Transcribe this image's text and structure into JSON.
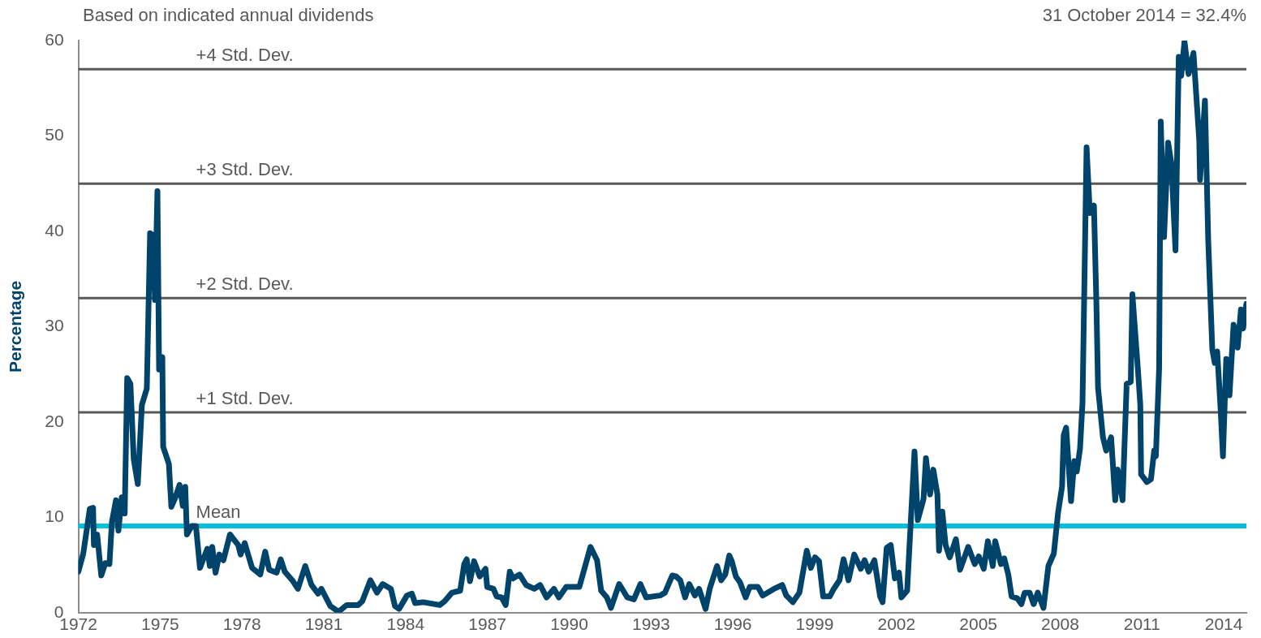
{
  "chart_data": {
    "type": "line",
    "subtitle": "Based on indicated annual dividends",
    "ylabel": "Percentage",
    "annotations": [
      "31 October 2014 = 32.4%"
    ],
    "xlim": [
      1972,
      2014.83
    ],
    "xticks": [
      1972,
      1975,
      1978,
      1981,
      1984,
      1987,
      1990,
      1993,
      1996,
      1999,
      2002,
      2005,
      2008,
      2011,
      2014
    ],
    "ylim": [
      0,
      60
    ],
    "yticks": [
      0,
      10,
      20,
      30,
      40,
      50,
      60
    ],
    "grid": false,
    "legend": false,
    "marker": "none",
    "ref_lines": [
      {
        "axis": "y",
        "value": 9.1,
        "label": "Mean",
        "color": "#00c0dc"
      },
      {
        "axis": "y",
        "value": 21,
        "label": "+1 Std. Dev.",
        "color": "#595959"
      },
      {
        "axis": "y",
        "value": 33,
        "label": "+2 Std. Dev.",
        "color": "#595959"
      },
      {
        "axis": "y",
        "value": 45,
        "label": "+3 Std. Dev.",
        "color": "#595959"
      },
      {
        "axis": "y",
        "value": 57,
        "label": "+4 Std. Dev.",
        "color": "#595959"
      }
    ],
    "series": [
      {
        "color": "#00436b",
        "x": [
          1972,
          1972.18,
          1972.42,
          1972.54,
          1972.57,
          1972.69,
          1972.84,
          1972.99,
          1973.14,
          1973.23,
          1973.38,
          1973.47,
          1973.59,
          1973.7,
          1973.79,
          1973.91,
          1974.03,
          1974.18,
          1974.33,
          1974.51,
          1974.63,
          1974.72,
          1974.81,
          1974.9,
          1974.96,
          1975.08,
          1975.11,
          1975.32,
          1975.41,
          1975.56,
          1975.71,
          1975.83,
          1975.92,
          1975.98,
          1976.16,
          1976.31,
          1976.46,
          1976.73,
          1976.82,
          1976.91,
          1977.03,
          1977.17,
          1977.32,
          1977.56,
          1977.86,
          1977.95,
          1978.1,
          1978.37,
          1978.67,
          1978.85,
          1979,
          1979.27,
          1979.42,
          1979.57,
          1979.87,
          1980.05,
          1980.32,
          1980.55,
          1980.79,
          1980.91,
          1981.24,
          1981.54,
          1981.84,
          1982.26,
          1982.41,
          1982.71,
          1982.95,
          1983.16,
          1983.46,
          1983.61,
          1983.76,
          1984.05,
          1984.23,
          1984.35,
          1984.65,
          1985.25,
          1985.43,
          1985.7,
          1986,
          1986.15,
          1986.24,
          1986.36,
          1986.51,
          1986.72,
          1986.93,
          1986.99,
          1987.22,
          1987.34,
          1987.52,
          1987.67,
          1987.82,
          1987.94,
          1988.18,
          1988.42,
          1988.72,
          1988.93,
          1989.17,
          1989.44,
          1989.62,
          1989.89,
          1990.37,
          1990.78,
          1991.02,
          1991.17,
          1991.38,
          1991.53,
          1991.83,
          1992.13,
          1992.37,
          1992.61,
          1992.82,
          1993.33,
          1993.51,
          1993.78,
          1993.92,
          1994.07,
          1994.25,
          1994.4,
          1994.61,
          1994.76,
          1995,
          1995.15,
          1995.42,
          1995.57,
          1995.72,
          1995.87,
          1995.96,
          1996.11,
          1996.26,
          1996.47,
          1996.62,
          1996.92,
          1997.09,
          1997.51,
          1997.81,
          1997.96,
          1998.2,
          1998.44,
          1998.71,
          1998.86,
          1999.01,
          1999.16,
          1999.31,
          1999.55,
          1999.7,
          1999.91,
          2000.06,
          2000.24,
          2000.45,
          2000.69,
          2000.83,
          2000.98,
          2001.19,
          2001.4,
          2001.49,
          2001.64,
          2001.79,
          2001.94,
          2002.09,
          2002.18,
          2002.39,
          2002.66,
          2002.78,
          2002.99,
          2003.08,
          2003.23,
          2003.35,
          2003.5,
          2003.56,
          2003.68,
          2003.8,
          2003.95,
          2004.18,
          2004.33,
          2004.63,
          2004.87,
          2005.02,
          2005.2,
          2005.35,
          2005.53,
          2005.62,
          2005.83,
          2005.95,
          2006.1,
          2006.22,
          2006.43,
          2006.58,
          2006.7,
          2006.88,
          2007.03,
          2007.18,
          2007.39,
          2007.57,
          2007.77,
          2007.92,
          2008.07,
          2008.13,
          2008.22,
          2008.4,
          2008.52,
          2008.61,
          2008.73,
          2008.82,
          2008.97,
          2009.09,
          2009.24,
          2009.33,
          2009.39,
          2009.57,
          2009.69,
          2009.87,
          2010.02,
          2010.11,
          2010.29,
          2010.44,
          2010.59,
          2010.65,
          2010.85,
          2010.94,
          2010.97,
          2011.18,
          2011.33,
          2011.45,
          2011.51,
          2011.63,
          2011.69,
          2011.81,
          2011.96,
          2012.08,
          2012.23,
          2012.35,
          2012.44,
          2012.56,
          2012.71,
          2012.89,
          2013.1,
          2013.13,
          2013.31,
          2013.43,
          2013.58,
          2013.67,
          2013.76,
          2013.88,
          2013.97,
          2014.09,
          2014.21,
          2014.36,
          2014.51,
          2014.63,
          2014.71,
          2014.83
        ],
        "values": [
          4.3,
          6.2,
          10.9,
          11,
          7.1,
          8.2,
          3.9,
          5.2,
          5.1,
          9.5,
          11.8,
          8.6,
          12.1,
          10.4,
          24.6,
          24,
          16.1,
          13.5,
          21.8,
          23.5,
          39.8,
          39.6,
          32.8,
          44.2,
          25.5,
          26.8,
          17.4,
          15.6,
          11.1,
          12.1,
          13.4,
          11.2,
          13.2,
          8.2,
          9.1,
          9.1,
          4.7,
          6.7,
          4.9,
          6.9,
          4.2,
          6.1,
          5.5,
          8.2,
          7.1,
          6.1,
          7.3,
          4.7,
          4,
          6.4,
          4.5,
          4.2,
          5.6,
          4.3,
          3.3,
          2.5,
          4.9,
          2.9,
          2,
          2.5,
          0.7,
          0.1,
          0.8,
          0.8,
          1.2,
          3.4,
          2.1,
          3,
          2.5,
          0.7,
          0.4,
          1.8,
          2,
          1,
          1.1,
          0.8,
          1.2,
          2.1,
          2.3,
          5.1,
          5.6,
          3.3,
          5.4,
          3.8,
          4.6,
          2.7,
          2.5,
          1.7,
          1.6,
          0.8,
          4.3,
          3.6,
          4,
          2.9,
          2.5,
          2.9,
          1.6,
          2.5,
          1.6,
          2.7,
          2.7,
          6.9,
          5.5,
          2.3,
          1.6,
          0.5,
          3,
          1.6,
          1.4,
          3,
          1.6,
          1.8,
          2.1,
          3.9,
          3.8,
          3.4,
          1.6,
          3,
          1.8,
          2.5,
          0.4,
          2.5,
          4.9,
          3.4,
          4,
          6,
          5.4,
          3.8,
          3.2,
          1.6,
          2.7,
          2.7,
          1.8,
          2.5,
          2.9,
          1.8,
          1.1,
          2.1,
          6.5,
          4.7,
          5.8,
          5.4,
          1.7,
          1.7,
          2.5,
          3.4,
          5.6,
          3.4,
          6.1,
          4.6,
          5.5,
          4.3,
          5.5,
          1.7,
          1.1,
          6.8,
          7.1,
          3.6,
          4.2,
          1.6,
          2.3,
          16.9,
          9.7,
          11.9,
          16.2,
          12.4,
          15,
          12.4,
          6.5,
          10.6,
          7.1,
          5.8,
          7.7,
          4.5,
          6.9,
          5.1,
          5.9,
          4.6,
          7.5,
          4.9,
          7.5,
          5.1,
          5.7,
          4,
          1.7,
          1.5,
          0.9,
          2.1,
          2.1,
          0.9,
          2.1,
          0.5,
          4.9,
          6.2,
          10.4,
          13.2,
          18.6,
          19.4,
          11.7,
          15.9,
          14.8,
          17.2,
          22,
          48.8,
          41.9,
          42.7,
          32.4,
          23.6,
          18.4,
          17,
          18.4,
          11.8,
          15,
          11.8,
          24,
          24.2,
          33.4,
          25.6,
          21.8,
          14.5,
          13.7,
          14,
          17,
          16.4,
          25.6,
          51.5,
          39.4,
          49.3,
          47.1,
          38,
          58.3,
          56.3,
          59.9,
          56.5,
          58.7,
          49.6,
          45.4,
          53.7,
          39.1,
          27.6,
          26.2,
          27.4,
          21.6,
          16.4,
          26.6,
          22.8,
          30.2,
          27.8,
          31.8,
          29.8,
          32.4
        ]
      }
    ]
  }
}
